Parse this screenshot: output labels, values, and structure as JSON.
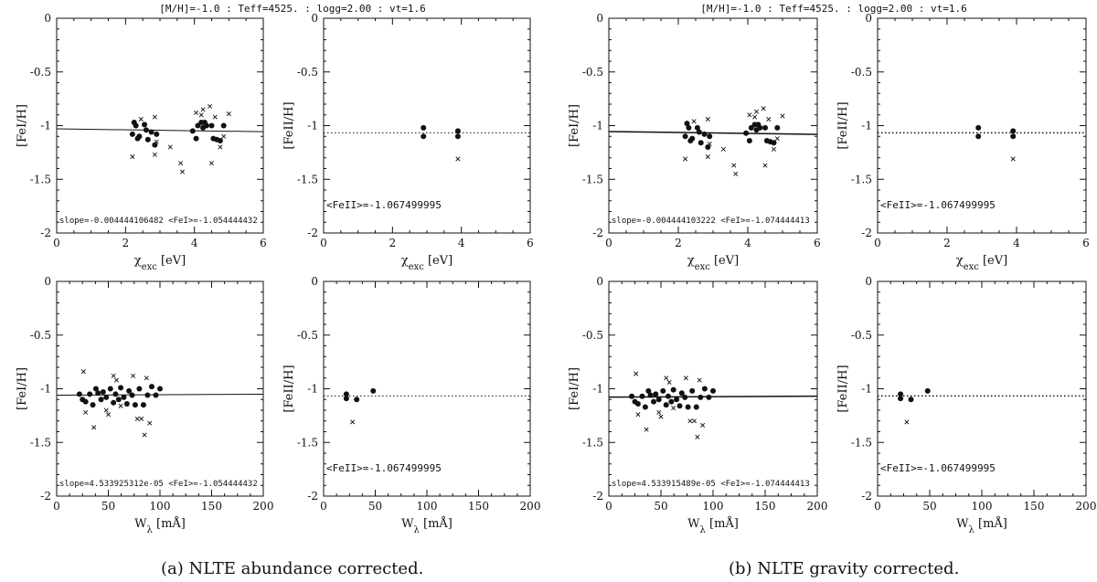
{
  "figure": {
    "captions": [
      "(a) NLTE abundance corrected.",
      "(b) NLTE gravity corrected."
    ],
    "panel_titles": [
      "[M/H]=-1.0 : Teff=4525. : logg=2.00 : vt=1.6",
      "[M/H]=-1.0 : Teff=4525. : logg=2.00 : vt=1.6"
    ]
  },
  "chart_data": [
    {
      "type": "scatter",
      "group": 0,
      "xlabel": "χexc [eV]",
      "ylabel": "[FeI/H]",
      "xlim": [
        0,
        6
      ],
      "ylim": [
        -2,
        0
      ],
      "xticks": [
        "0",
        "2",
        "4",
        "6"
      ],
      "yticks": [
        "0",
        "-0.5",
        "-1",
        "-1.5",
        "-2"
      ],
      "fit": {
        "style": "solid",
        "y0": -1.03,
        "slope": -0.004444106482
      },
      "annotation": "slope=-0.004444106482   <FeI>=-1.054444432",
      "dots": [
        [
          2.2,
          -1.08
        ],
        [
          2.25,
          -0.97
        ],
        [
          2.3,
          -1.0
        ],
        [
          2.35,
          -1.12
        ],
        [
          2.4,
          -1.1
        ],
        [
          2.55,
          -0.99
        ],
        [
          2.6,
          -1.04
        ],
        [
          2.65,
          -1.13
        ],
        [
          2.75,
          -1.06
        ],
        [
          2.85,
          -1.18
        ],
        [
          2.9,
          -1.08
        ],
        [
          3.95,
          -1.05
        ],
        [
          4.05,
          -1.12
        ],
        [
          4.1,
          -1.0
        ],
        [
          4.2,
          -0.97
        ],
        [
          4.25,
          -1.02
        ],
        [
          4.3,
          -0.97
        ],
        [
          4.35,
          -1.0
        ],
        [
          4.5,
          -1.0
        ],
        [
          4.55,
          -1.12
        ],
        [
          4.65,
          -1.13
        ],
        [
          4.75,
          -1.14
        ],
        [
          4.85,
          -1.0
        ]
      ],
      "crosses": [
        [
          2.2,
          -1.29
        ],
        [
          2.45,
          -0.94
        ],
        [
          2.85,
          -0.92
        ],
        [
          2.85,
          -1.27
        ],
        [
          2.9,
          -1.15
        ],
        [
          3.3,
          -1.2
        ],
        [
          3.6,
          -1.35
        ],
        [
          3.65,
          -1.43
        ],
        [
          4.05,
          -0.88
        ],
        [
          4.2,
          -0.9
        ],
        [
          4.25,
          -0.85
        ],
        [
          4.45,
          -0.82
        ],
        [
          4.5,
          -1.35
        ],
        [
          4.6,
          -0.92
        ],
        [
          4.75,
          -1.2
        ],
        [
          4.85,
          -1.1
        ],
        [
          5.0,
          -0.89
        ]
      ]
    },
    {
      "type": "scatter",
      "group": 0,
      "xlabel": "χexc [eV]",
      "ylabel": "[FeII/H]",
      "xlim": [
        0,
        6
      ],
      "ylim": [
        -2,
        0
      ],
      "xticks": [
        "0",
        "2",
        "4",
        "6"
      ],
      "yticks": [
        "0",
        "-0.5",
        "-1",
        "-1.5",
        "-2"
      ],
      "fit": {
        "style": "dotted",
        "y0": -1.0675,
        "slope": 0
      },
      "annotation": "<FeII>=-1.067499995",
      "dots": [
        [
          2.9,
          -1.02
        ],
        [
          2.9,
          -1.1
        ],
        [
          3.9,
          -1.05
        ],
        [
          3.9,
          -1.1
        ]
      ],
      "crosses": [
        [
          3.9,
          -1.31
        ]
      ]
    },
    {
      "type": "scatter",
      "group": 0,
      "xlabel": "Wλ [mÅ]",
      "ylabel": "[FeI/H]",
      "xlim": [
        0,
        200
      ],
      "ylim": [
        -2,
        0
      ],
      "xticks": [
        "0",
        "50",
        "100",
        "150",
        "200"
      ],
      "yticks": [
        "0",
        "-0.5",
        "-1",
        "-1.5",
        "-2"
      ],
      "fit": {
        "style": "solid",
        "y0": -1.06,
        "slope": 4.53392531e-05
      },
      "annotation": "slope=4.533925312e-05   <FeI>=-1.054444432",
      "dots": [
        [
          22,
          -1.05
        ],
        [
          25,
          -1.1
        ],
        [
          28,
          -1.12
        ],
        [
          32,
          -1.05
        ],
        [
          35,
          -1.15
        ],
        [
          38,
          -1.0
        ],
        [
          40,
          -1.04
        ],
        [
          43,
          -1.1
        ],
        [
          45,
          -1.03
        ],
        [
          48,
          -1.08
        ],
        [
          52,
          -1.0
        ],
        [
          55,
          -1.13
        ],
        [
          57,
          -1.05
        ],
        [
          60,
          -1.1
        ],
        [
          62,
          -0.99
        ],
        [
          65,
          -1.08
        ],
        [
          68,
          -1.14
        ],
        [
          70,
          -1.02
        ],
        [
          73,
          -1.06
        ],
        [
          76,
          -1.15
        ],
        [
          80,
          -1.0
        ],
        [
          84,
          -1.15
        ],
        [
          88,
          -1.06
        ],
        [
          92,
          -0.98
        ],
        [
          96,
          -1.06
        ],
        [
          100,
          -1.0
        ]
      ],
      "crosses": [
        [
          26,
          -0.84
        ],
        [
          28,
          -1.22
        ],
        [
          36,
          -1.36
        ],
        [
          48,
          -1.2
        ],
        [
          50,
          -1.24
        ],
        [
          55,
          -0.88
        ],
        [
          58,
          -0.92
        ],
        [
          62,
          -1.16
        ],
        [
          74,
          -0.88
        ],
        [
          78,
          -1.28
        ],
        [
          82,
          -1.28
        ],
        [
          85,
          -1.43
        ],
        [
          87,
          -0.9
        ],
        [
          90,
          -1.32
        ]
      ]
    },
    {
      "type": "scatter",
      "group": 0,
      "xlabel": "Wλ [mÅ]",
      "ylabel": "[FeII/H]",
      "xlim": [
        0,
        200
      ],
      "ylim": [
        -2,
        0
      ],
      "xticks": [
        "0",
        "50",
        "100",
        "150",
        "200"
      ],
      "yticks": [
        "0",
        "-0.5",
        "-1",
        "-1.5",
        "-2"
      ],
      "fit": {
        "style": "dotted",
        "y0": -1.0675,
        "slope": 0
      },
      "annotation": "<FeII>=-1.067499995",
      "dots": [
        [
          22,
          -1.05
        ],
        [
          22,
          -1.09
        ],
        [
          32,
          -1.1
        ],
        [
          48,
          -1.02
        ]
      ],
      "crosses": [
        [
          28,
          -1.31
        ]
      ]
    },
    {
      "type": "scatter",
      "group": 1,
      "xlabel": "χexc [eV]",
      "ylabel": "[FeI/H]",
      "xlim": [
        0,
        6
      ],
      "ylim": [
        -2,
        0
      ],
      "xticks": [
        "0",
        "2",
        "4",
        "6"
      ],
      "yticks": [
        "0",
        "-0.5",
        "-1",
        "-1.5",
        "-2"
      ],
      "fit": {
        "style": "solid",
        "y0": -1.055,
        "slope": -0.004444103222
      },
      "annotation": "slope=-0.004444103222   <FeI>=-1.074444413",
      "dots": [
        [
          2.2,
          -1.1
        ],
        [
          2.25,
          -0.98
        ],
        [
          2.3,
          -1.02
        ],
        [
          2.35,
          -1.14
        ],
        [
          2.4,
          -1.12
        ],
        [
          2.55,
          -1.02
        ],
        [
          2.6,
          -1.06
        ],
        [
          2.65,
          -1.16
        ],
        [
          2.75,
          -1.08
        ],
        [
          2.85,
          -1.2
        ],
        [
          2.9,
          -1.1
        ],
        [
          3.95,
          -1.07
        ],
        [
          4.05,
          -1.14
        ],
        [
          4.1,
          -1.02
        ],
        [
          4.2,
          -0.99
        ],
        [
          4.25,
          -1.04
        ],
        [
          4.3,
          -0.99
        ],
        [
          4.35,
          -1.02
        ],
        [
          4.5,
          -1.02
        ],
        [
          4.55,
          -1.14
        ],
        [
          4.65,
          -1.15
        ],
        [
          4.75,
          -1.16
        ],
        [
          4.85,
          -1.02
        ]
      ],
      "crosses": [
        [
          2.2,
          -1.31
        ],
        [
          2.45,
          -0.96
        ],
        [
          2.85,
          -0.94
        ],
        [
          2.85,
          -1.29
        ],
        [
          2.9,
          -1.17
        ],
        [
          3.3,
          -1.22
        ],
        [
          3.6,
          -1.37
        ],
        [
          3.65,
          -1.45
        ],
        [
          4.05,
          -0.9
        ],
        [
          4.2,
          -0.92
        ],
        [
          4.25,
          -0.87
        ],
        [
          4.45,
          -0.84
        ],
        [
          4.5,
          -1.37
        ],
        [
          4.6,
          -0.94
        ],
        [
          4.75,
          -1.22
        ],
        [
          4.85,
          -1.12
        ],
        [
          5.0,
          -0.91
        ]
      ]
    },
    {
      "type": "scatter",
      "group": 1,
      "xlabel": "χexc [eV]",
      "ylabel": "[FeII/H]",
      "xlim": [
        0,
        6
      ],
      "ylim": [
        -2,
        0
      ],
      "xticks": [
        "0",
        "2",
        "4",
        "6"
      ],
      "yticks": [
        "0",
        "-0.5",
        "-1",
        "-1.5",
        "-2"
      ],
      "fit": {
        "style": "dotted",
        "y0": -1.0675,
        "slope": 0
      },
      "annotation": "<FeII>=-1.067499995",
      "dots": [
        [
          2.9,
          -1.02
        ],
        [
          2.9,
          -1.1
        ],
        [
          3.9,
          -1.05
        ],
        [
          3.9,
          -1.1
        ]
      ],
      "crosses": [
        [
          3.9,
          -1.31
        ]
      ]
    },
    {
      "type": "scatter",
      "group": 1,
      "xlabel": "Wλ [mÅ]",
      "ylabel": "[FeI/H]",
      "xlim": [
        0,
        200
      ],
      "ylim": [
        -2,
        0
      ],
      "xticks": [
        "0",
        "50",
        "100",
        "150",
        "200"
      ],
      "yticks": [
        "0",
        "-0.5",
        "-1",
        "-1.5",
        "-2"
      ],
      "fit": {
        "style": "solid",
        "y0": -1.078,
        "slope": 4.53391549e-05
      },
      "annotation": "slope=4.533915489e-05   <FeI>=-1.074444413",
      "dots": [
        [
          22,
          -1.07
        ],
        [
          25,
          -1.12
        ],
        [
          28,
          -1.14
        ],
        [
          32,
          -1.07
        ],
        [
          35,
          -1.17
        ],
        [
          38,
          -1.02
        ],
        [
          40,
          -1.06
        ],
        [
          43,
          -1.12
        ],
        [
          45,
          -1.05
        ],
        [
          48,
          -1.1
        ],
        [
          52,
          -1.02
        ],
        [
          55,
          -1.15
        ],
        [
          57,
          -1.07
        ],
        [
          60,
          -1.12
        ],
        [
          62,
          -1.01
        ],
        [
          65,
          -1.1
        ],
        [
          68,
          -1.16
        ],
        [
          70,
          -1.04
        ],
        [
          73,
          -1.08
        ],
        [
          76,
          -1.17
        ],
        [
          80,
          -1.02
        ],
        [
          84,
          -1.17
        ],
        [
          88,
          -1.08
        ],
        [
          92,
          -1.0
        ],
        [
          96,
          -1.08
        ],
        [
          100,
          -1.02
        ]
      ],
      "crosses": [
        [
          26,
          -0.86
        ],
        [
          28,
          -1.24
        ],
        [
          36,
          -1.38
        ],
        [
          48,
          -1.22
        ],
        [
          50,
          -1.26
        ],
        [
          55,
          -0.9
        ],
        [
          58,
          -0.94
        ],
        [
          62,
          -1.18
        ],
        [
          74,
          -0.9
        ],
        [
          78,
          -1.3
        ],
        [
          82,
          -1.3
        ],
        [
          85,
          -1.45
        ],
        [
          87,
          -0.92
        ],
        [
          90,
          -1.34
        ]
      ]
    },
    {
      "type": "scatter",
      "group": 1,
      "xlabel": "Wλ [mÅ]",
      "ylabel": "[FeII/H]",
      "xlim": [
        0,
        200
      ],
      "ylim": [
        -2,
        0
      ],
      "xticks": [
        "0",
        "50",
        "100",
        "150",
        "200"
      ],
      "yticks": [
        "0",
        "-0.5",
        "-1",
        "-1.5",
        "-2"
      ],
      "fit": {
        "style": "dotted",
        "y0": -1.0675,
        "slope": 0
      },
      "annotation": "<FeII>=-1.067499995",
      "dots": [
        [
          22,
          -1.05
        ],
        [
          22,
          -1.09
        ],
        [
          32,
          -1.1
        ],
        [
          48,
          -1.02
        ]
      ],
      "crosses": [
        [
          28,
          -1.31
        ]
      ]
    }
  ]
}
